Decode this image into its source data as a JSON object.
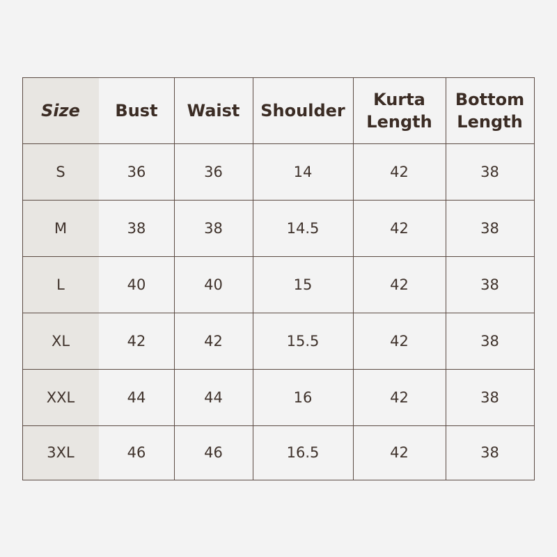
{
  "table": {
    "header": [
      "Size",
      "Bust",
      "Waist",
      "Shoulder",
      "Kurta Length",
      "Bottom Length"
    ],
    "rows": [
      [
        "S",
        "36",
        "36",
        "14",
        "42",
        "38"
      ],
      [
        "M",
        "38",
        "38",
        "14.5",
        "42",
        "38"
      ],
      [
        "L",
        "40",
        "40",
        "15",
        "42",
        "38"
      ],
      [
        "XL",
        "42",
        "42",
        "15.5",
        "42",
        "38"
      ],
      [
        "XXL",
        "44",
        "44",
        "16",
        "42",
        "38"
      ],
      [
        "3XL",
        "46",
        "46",
        "16.5",
        "42",
        "38"
      ]
    ]
  }
}
